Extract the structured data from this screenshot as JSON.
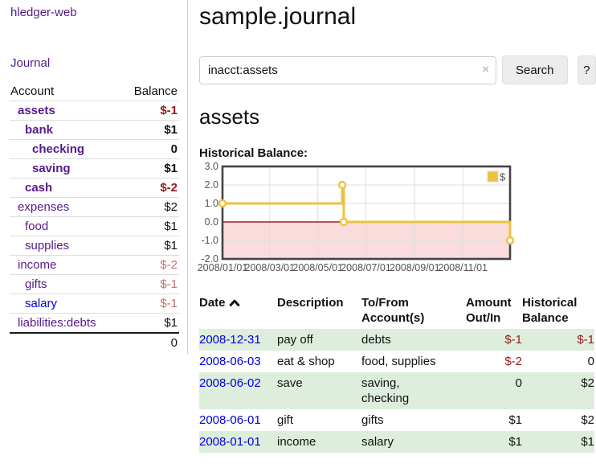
{
  "colors": {
    "link_purple": "#551a8b",
    "link_blue": "#0000dd",
    "negative_strong": "#971919",
    "negative_light": "#c56f6f",
    "row_green": "#ddeedd",
    "chart_yellow": "#edc240"
  },
  "sidebar": {
    "brand": "hledger-web",
    "nav_journal": "Journal",
    "accounts_header": {
      "account": "Account",
      "balance": "Balance"
    },
    "accounts": [
      {
        "label": "assets",
        "balance": "$-1",
        "indent": 0,
        "bold": true,
        "balance_class": "neg-strong",
        "link_class": "plink"
      },
      {
        "label": "bank",
        "balance": "$1",
        "indent": 1,
        "bold": true,
        "balance_class": "pos",
        "link_class": "plink"
      },
      {
        "label": "checking",
        "balance": "0",
        "indent": 2,
        "bold": true,
        "balance_class": "pos",
        "link_class": "plink"
      },
      {
        "label": "saving",
        "balance": "$1",
        "indent": 2,
        "bold": true,
        "balance_class": "pos",
        "link_class": "plink"
      },
      {
        "label": "cash",
        "balance": "$-2",
        "indent": 1,
        "bold": true,
        "balance_class": "neg-strong",
        "link_class": "plink"
      },
      {
        "label": "expenses",
        "balance": "$2",
        "indent": 0,
        "bold": false,
        "balance_class": "pos",
        "link_class": "plink"
      },
      {
        "label": "food",
        "balance": "$1",
        "indent": 1,
        "bold": false,
        "balance_class": "pos",
        "link_class": "plink"
      },
      {
        "label": "supplies",
        "balance": "$1",
        "indent": 1,
        "bold": false,
        "balance_class": "pos",
        "link_class": "plink"
      },
      {
        "label": "income",
        "balance": "$-2",
        "indent": 0,
        "bold": false,
        "balance_class": "neg-light",
        "link_class": "plink"
      },
      {
        "label": "gifts",
        "balance": "$-1",
        "indent": 1,
        "bold": false,
        "balance_class": "neg-light",
        "link_class": "plink"
      },
      {
        "label": "salary",
        "balance": "$-1",
        "indent": 1,
        "bold": false,
        "balance_class": "neg-light",
        "link_class": "blue"
      },
      {
        "label": "liabilities:debts",
        "balance": "$1",
        "indent": 0,
        "bold": false,
        "balance_class": "pos",
        "link_class": "plink"
      }
    ],
    "total": "0"
  },
  "main": {
    "title": "sample.journal",
    "search": {
      "value": "inacct:assets",
      "clear_icon": "×",
      "button_label": "Search",
      "help_label": "?"
    },
    "account_title": "assets",
    "chart_title": "Historical Balance:"
  },
  "chart_data": {
    "type": "line-step",
    "title": "Historical Balance",
    "series": [
      {
        "name": "$",
        "color": "#edc240",
        "points": [
          [
            "2008-01-01",
            1
          ],
          [
            "2008-06-01",
            2
          ],
          [
            "2008-06-03",
            0
          ],
          [
            "2008-12-31",
            -1
          ]
        ]
      }
    ],
    "x_range": [
      "2008-01-01",
      "2008-12-31"
    ],
    "ylim": [
      -2,
      3
    ],
    "yticks": [
      {
        "v": 3,
        "label": "3.0"
      },
      {
        "v": 2,
        "label": "2.0"
      },
      {
        "v": 1,
        "label": "1.0"
      },
      {
        "v": 0,
        "label": "0.0"
      },
      {
        "v": -1,
        "label": "-1.0"
      },
      {
        "v": -2,
        "label": "-2.0"
      }
    ],
    "xticks": [
      {
        "date": "2008-01-01",
        "label": "2008/01/01"
      },
      {
        "date": "2008-03-01",
        "label": "2008/03/01"
      },
      {
        "date": "2008-05-01",
        "label": "2008/05/01"
      },
      {
        "date": "2008-07-01",
        "label": "2008/07/01"
      },
      {
        "date": "2008-09-01",
        "label": "2008/09/01"
      },
      {
        "date": "2008-11-01",
        "label": "2008/11/01"
      }
    ],
    "legend": {
      "label": "$",
      "position": "top-right"
    },
    "grid": true,
    "zero_line_color": "#a51c1c",
    "negative_fill": "#fbdcdc",
    "grid_color": "#dedede",
    "border_color": "#444444",
    "label_color": "#545454"
  },
  "register": {
    "headers": {
      "date": "Date",
      "sort_icon": "chevron-up",
      "description": "Description",
      "accounts": "To/From Account(s)",
      "amount": "Amount Out/In",
      "balance": "Historical Balance"
    },
    "rows": [
      {
        "date": "2008-12-31",
        "description": "pay off",
        "accounts": "debts",
        "amount": "$-1",
        "amount_class": "neg",
        "balance": "$-1",
        "balance_class": "neg",
        "shaded": true
      },
      {
        "date": "2008-06-03",
        "description": "eat & shop",
        "accounts": "food, supplies",
        "amount": "$-2",
        "amount_class": "neg",
        "balance": "0",
        "balance_class": "pos",
        "shaded": false
      },
      {
        "date": "2008-06-02",
        "description": "save",
        "accounts": "saving, checking",
        "amount": "0",
        "amount_class": "pos",
        "balance": "$2",
        "balance_class": "pos",
        "shaded": true
      },
      {
        "date": "2008-06-01",
        "description": "gift",
        "accounts": "gifts",
        "amount": "$1",
        "amount_class": "pos",
        "balance": "$2",
        "balance_class": "pos",
        "shaded": false
      },
      {
        "date": "2008-01-01",
        "description": "income",
        "accounts": "salary",
        "amount": "$1",
        "amount_class": "pos",
        "balance": "$1",
        "balance_class": "pos",
        "shaded": true
      }
    ]
  }
}
